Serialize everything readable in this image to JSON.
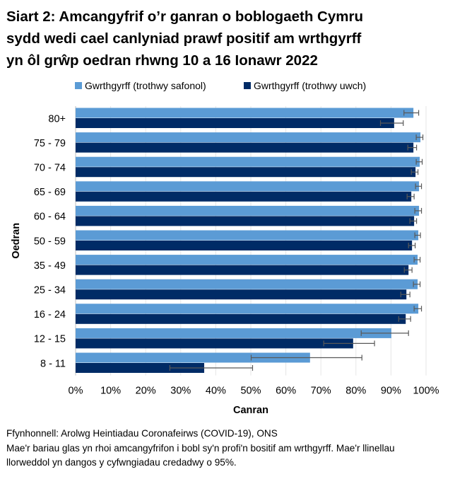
{
  "chart_data": {
    "type": "bar",
    "orientation": "horizontal",
    "title": "Siart 2: Amcangyfrif o’r ganran o boblogaeth Cymru sydd wedi cael canlyniad prawf positif am wrthgyrff yn ôl grŵp oedran rhwng 10 a 16 Ionawr 2022",
    "xlabel": "Canran",
    "ylabel": "Oedran",
    "xlim": [
      0,
      100
    ],
    "xticks": [
      "0%",
      "10%",
      "20%",
      "30%",
      "40%",
      "50%",
      "60%",
      "70%",
      "80%",
      "90%",
      "100%"
    ],
    "grid": true,
    "legend_position": "top",
    "categories": [
      "80+",
      "75 - 79",
      "70 - 74",
      "65 - 69",
      "60 - 64",
      "50 - 59",
      "35 - 49",
      "25 - 34",
      "16 - 24",
      "12 - 15",
      "8 - 11"
    ],
    "series": [
      {
        "name": "Gwrthgyrff (trothwy safonol)",
        "color": "#5b9bd5",
        "values": [
          96.4,
          98.4,
          98.2,
          98.0,
          98.0,
          97.8,
          97.6,
          97.6,
          97.8,
          90.1,
          66.9
        ],
        "lower": [
          93.7,
          97.2,
          97.2,
          97.0,
          96.8,
          96.8,
          96.6,
          96.4,
          96.6,
          81.5,
          50.1
        ],
        "upper": [
          97.9,
          99.1,
          98.9,
          98.7,
          98.7,
          98.4,
          98.3,
          98.3,
          98.7,
          95.0,
          81.7
        ]
      },
      {
        "name": "Gwrthgyrff (trothwy uwch)",
        "color": "#002b66",
        "values": [
          90.9,
          96.4,
          97.0,
          95.8,
          96.6,
          96.0,
          95.0,
          94.4,
          94.2,
          79.2,
          36.7
        ],
        "lower": [
          87.0,
          94.8,
          95.8,
          94.6,
          95.4,
          95.0,
          93.8,
          92.8,
          92.2,
          70.8,
          26.9
        ],
        "upper": [
          93.5,
          97.3,
          97.7,
          96.6,
          97.3,
          96.9,
          96.0,
          95.4,
          95.6,
          85.3,
          50.5
        ]
      }
    ]
  },
  "title_lines": [
    "Siart 2: Amcangyfrif o’r ganran o boblogaeth Cymru",
    "sydd wedi cael canlyniad prawf positif am wrthgyrff",
    "yn ôl grŵp oedran rhwng 10 a 16 Ionawr 2022"
  ],
  "notes": {
    "source": "Ffynhonnell: Arolwg Heintiadau Coronafeirws (COVID-19), ONS",
    "line2": "Mae'r bariau glas yn rhoi amcangyfrifon i bobl sy'n profi'n bositif am wrthgyrff. Mae'r llinellau",
    "line3": "llorweddol yn dangos y cyfwngiadau credadwy o 95%."
  }
}
